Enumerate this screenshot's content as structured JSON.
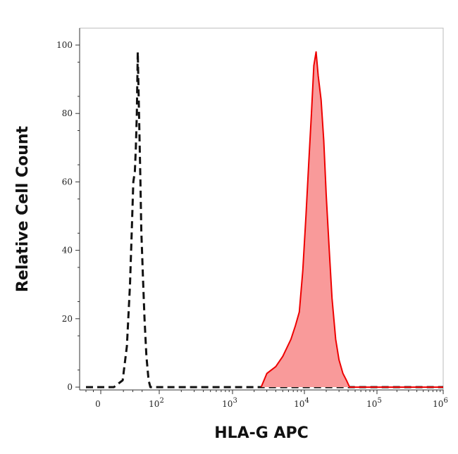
{
  "chart_data": {
    "type": "area",
    "title": "",
    "xlabel": "HLA-G APC",
    "ylabel": "Relative Cell Count",
    "x_scale": "logicle",
    "xlim": [
      -30,
      1000000
    ],
    "ylim": [
      0,
      100
    ],
    "grid": false,
    "x_ticks": [
      {
        "value": 0,
        "base": "0",
        "exp": ""
      },
      {
        "value": 100,
        "base": "10",
        "exp": "2"
      },
      {
        "value": 1000,
        "base": "10",
        "exp": "3"
      },
      {
        "value": 10000,
        "base": "10",
        "exp": "4"
      },
      {
        "value": 100000,
        "base": "10",
        "exp": "5"
      },
      {
        "value": 1000000,
        "base": "10",
        "exp": "6"
      }
    ],
    "y_ticks": [
      0,
      20,
      40,
      60,
      80,
      100
    ],
    "series": [
      {
        "role": "control",
        "style": "dashed",
        "color": "#111111",
        "fill": "none",
        "points": [
          [
            -30,
            0
          ],
          [
            5,
            0
          ],
          [
            14,
            2
          ],
          [
            20,
            12
          ],
          [
            25,
            30
          ],
          [
            28,
            45
          ],
          [
            31,
            60
          ],
          [
            34,
            63
          ],
          [
            36,
            70
          ],
          [
            38,
            80
          ],
          [
            40,
            98
          ],
          [
            42,
            85
          ],
          [
            44,
            72
          ],
          [
            46,
            60
          ],
          [
            48,
            46
          ],
          [
            52,
            32
          ],
          [
            56,
            20
          ],
          [
            61,
            9
          ],
          [
            67,
            2
          ],
          [
            72,
            0
          ],
          [
            90,
            0
          ],
          [
            1000000,
            0
          ]
        ]
      },
      {
        "role": "stained",
        "style": "solid",
        "color": "#ee0000",
        "fill": "#f99a9a",
        "points": [
          [
            2500,
            0
          ],
          [
            3000,
            4
          ],
          [
            4000,
            6
          ],
          [
            5000,
            9
          ],
          [
            6500,
            14
          ],
          [
            7500,
            18
          ],
          [
            8500,
            22
          ],
          [
            9500,
            34
          ],
          [
            10500,
            50
          ],
          [
            11500,
            66
          ],
          [
            12500,
            80
          ],
          [
            13500,
            94
          ],
          [
            14500,
            98
          ],
          [
            15500,
            91
          ],
          [
            17000,
            84
          ],
          [
            18500,
            72
          ],
          [
            20000,
            56
          ],
          [
            22000,
            40
          ],
          [
            24000,
            26
          ],
          [
            27000,
            14
          ],
          [
            30000,
            8
          ],
          [
            34000,
            4
          ],
          [
            38000,
            2
          ],
          [
            42000,
            0
          ],
          [
            1000000,
            0
          ]
        ]
      }
    ]
  }
}
